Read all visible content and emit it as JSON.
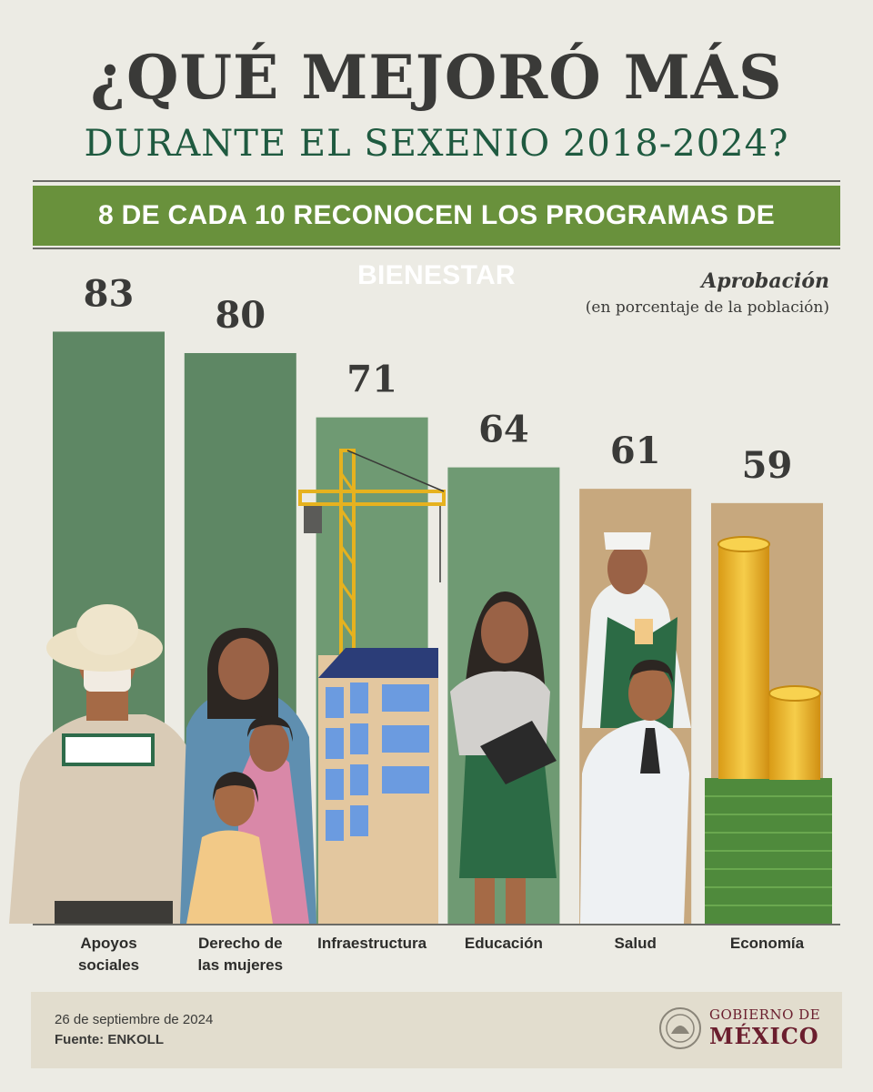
{
  "header": {
    "title": "¿QUÉ MEJORÓ MÁS",
    "subtitle": "DURANTE EL SEXENIO 2018-2024?",
    "banner": "8 DE CADA 10 RECONOCEN LOS PROGRAMAS DE BIENESTAR"
  },
  "legend": {
    "title": "Aprobación",
    "subtitle": "(en porcentaje de la población)"
  },
  "chart_data": {
    "type": "bar",
    "categories": [
      [
        "Apoyos",
        "sociales"
      ],
      [
        "Derecho de",
        "las mujeres"
      ],
      [
        "Infraestructura"
      ],
      [
        "Educación"
      ],
      [
        "Salud"
      ],
      [
        "Economía"
      ]
    ],
    "values": [
      83,
      80,
      71,
      64,
      61,
      59
    ],
    "bar_colors": [
      "#5e8764",
      "#5e8764",
      "#6f9a73",
      "#6f9a73",
      "#c7a87e",
      "#c7a87e"
    ],
    "ylabel": "Aprobación (en porcentaje de la población)",
    "ylim": [
      0,
      100
    ],
    "grid": false,
    "legend": "top-right"
  },
  "footer": {
    "date": "26 de septiembre de 2024",
    "source": "Fuente: ENKOLL",
    "gov_line1": "GOBIERNO DE",
    "gov_line2": "MÉXICO"
  },
  "colors": {
    "background": "#ecebe4",
    "title": "#3a3a38",
    "subtitle": "#1f5a40",
    "banner": "#69913c",
    "brand": "#6b1e2e"
  }
}
